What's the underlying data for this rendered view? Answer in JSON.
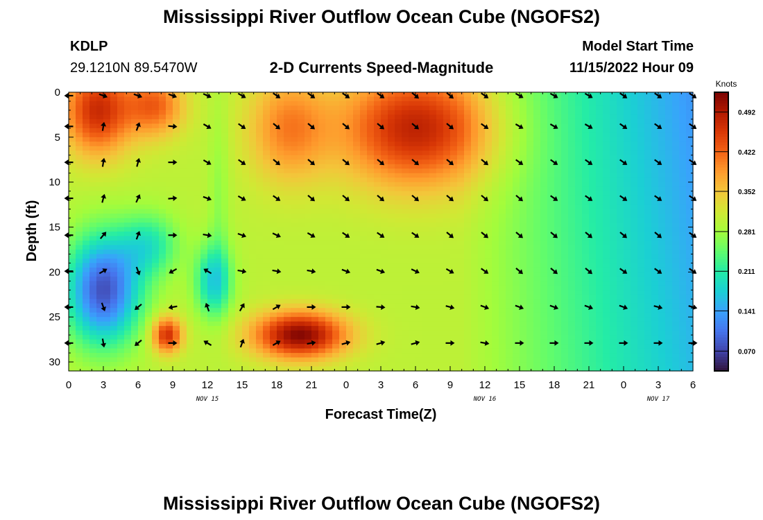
{
  "header": {
    "title": "Mississippi River Outflow Ocean Cube (NGOFS2)",
    "station_id": "KDLP",
    "station_coords": "29.1210N  89.5470W",
    "product": "2-D Currents Speed-Magnitude",
    "model_start_label": "Model Start Time",
    "model_start_value": "11/15/2022 Hour 09"
  },
  "footer": {
    "title": "Mississippi River Outflow Ocean Cube (NGOFS2)"
  },
  "colors": {
    "colormap": [
      "#30123b",
      "#4145ab",
      "#4675ed",
      "#39a2fc",
      "#1bcfd4",
      "#24eca6",
      "#61fc6c",
      "#a4fc3b",
      "#d1e834",
      "#f3c63a",
      "#fe9b2d",
      "#f36315",
      "#d93806",
      "#b11901",
      "#7a0403"
    ]
  },
  "chart_data": {
    "type": "heatmap",
    "subtype": "time-depth section with current direction vectors",
    "xlabel": "Forecast Time(Z)",
    "ylabel": "Depth (ft)",
    "x_ticks": [
      "0",
      "3",
      "6",
      "9",
      "12",
      "15",
      "18",
      "21",
      "0",
      "3",
      "6",
      "9",
      "12",
      "15",
      "18",
      "21",
      "0",
      "3",
      "6"
    ],
    "x_range_hours": [
      0,
      54
    ],
    "date_labels": [
      {
        "hour": 12,
        "label": "NOV 15"
      },
      {
        "hour": 36,
        "label": "NOV 16"
      },
      {
        "hour": 51,
        "label": "NOV 17"
      }
    ],
    "y_ticks": [
      0,
      5,
      10,
      15,
      20,
      25,
      30
    ],
    "y_range_ft": [
      0,
      31
    ],
    "y_inverted": true,
    "colorbar": {
      "title": "Knots",
      "range": [
        0.035,
        0.527
      ],
      "tick_values": [
        0.07,
        0.141,
        0.211,
        0.281,
        0.352,
        0.422,
        0.492
      ],
      "tick_labels": [
        "0.070",
        "0.141",
        "0.211",
        "0.281",
        "0.352",
        "0.422",
        "0.492"
      ]
    },
    "arrow_depths_ft": [
      0,
      3.8,
      7.8,
      11.8,
      15.9,
      19.9,
      23.9,
      27.9
    ],
    "arrow_times_hours": [
      0,
      3,
      6,
      9,
      12,
      15,
      18,
      21,
      24,
      27,
      30,
      33,
      36,
      39,
      42,
      45,
      48,
      51,
      54
    ],
    "arrow_directions_deg": [
      [
        270,
        110,
        110,
        110,
        115,
        120,
        125,
        125,
        125,
        125,
        130,
        130,
        125,
        120,
        120,
        120,
        125,
        125,
        125
      ],
      [
        270,
        10,
        20,
        95,
        120,
        125,
        130,
        130,
        130,
        130,
        130,
        130,
        125,
        120,
        120,
        120,
        125,
        125,
        125
      ],
      [
        270,
        10,
        15,
        90,
        120,
        125,
        130,
        130,
        130,
        130,
        130,
        130,
        130,
        125,
        125,
        125,
        125,
        125,
        125
      ],
      [
        270,
        15,
        25,
        85,
        110,
        120,
        125,
        130,
        130,
        130,
        130,
        130,
        130,
        130,
        125,
        125,
        125,
        125,
        125
      ],
      [
        270,
        40,
        20,
        90,
        100,
        110,
        115,
        120,
        125,
        125,
        125,
        130,
        130,
        130,
        130,
        130,
        130,
        130,
        125
      ],
      [
        270,
        60,
        160,
        240,
        300,
        100,
        100,
        100,
        110,
        110,
        115,
        120,
        125,
        130,
        130,
        130,
        125,
        125,
        125
      ],
      [
        270,
        160,
        230,
        260,
        340,
        30,
        60,
        90,
        90,
        95,
        100,
        105,
        110,
        110,
        110,
        110,
        110,
        105,
        105
      ],
      [
        270,
        170,
        230,
        90,
        300,
        20,
        60,
        80,
        75,
        75,
        75,
        90,
        100,
        90,
        90,
        90,
        90,
        90,
        90
      ]
    ],
    "speed_field_description_knots": "surface max ~0.47 near hour 30-33 and ~0.46 near hours 0-3; bottom jet ~0.49 at 27 ft between hours 16-24; minimum ~0.07 at 20-27 ft near hours 1-3 and 13; low ~0.16 at hour 54"
  }
}
